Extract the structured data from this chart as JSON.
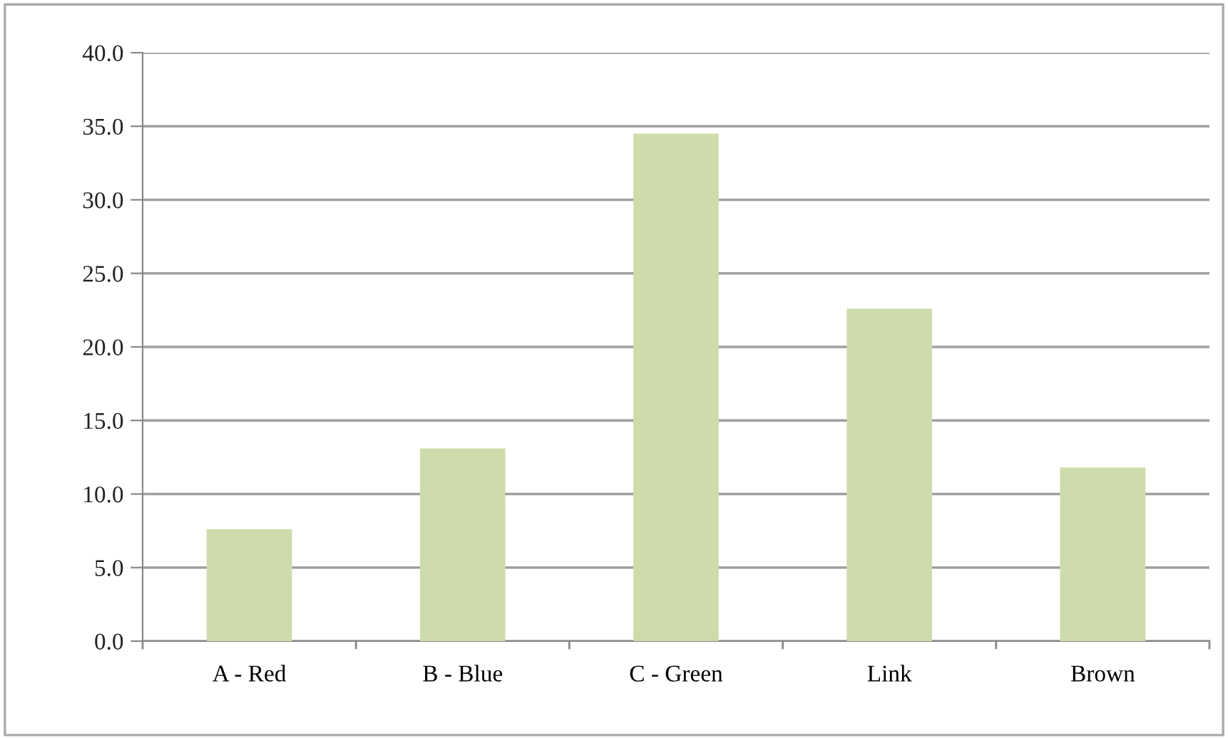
{
  "chart_data": {
    "type": "bar",
    "categories": [
      "A - Red",
      "B - Blue",
      "C - Green",
      "Link",
      "Brown"
    ],
    "values": [
      7.6,
      13.1,
      34.5,
      22.6,
      11.8
    ],
    "color": "#cddcaa",
    "ylim": [
      0,
      40
    ],
    "yticks": [
      {
        "value": 0,
        "label": "0.0"
      },
      {
        "value": 5,
        "label": "5.0"
      },
      {
        "value": 10,
        "label": "10.0"
      },
      {
        "value": 15,
        "label": "15.0"
      },
      {
        "value": 20,
        "label": "20.0"
      },
      {
        "value": 25,
        "label": "25.0"
      },
      {
        "value": 30,
        "label": "30.0"
      },
      {
        "value": 35,
        "label": "35.0"
      },
      {
        "value": 40,
        "label": "40.0"
      }
    ],
    "grid": "y"
  }
}
